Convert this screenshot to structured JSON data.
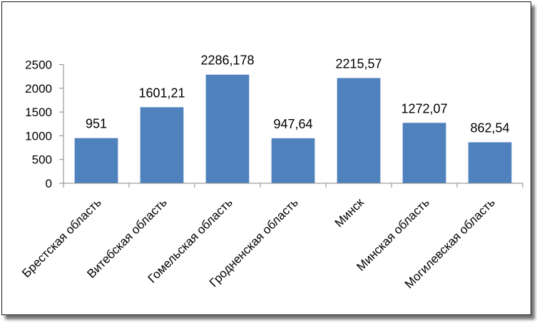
{
  "chart_data": {
    "type": "bar",
    "categories": [
      "Брестская область",
      "Витебская область",
      "Гомельская область",
      "Гродненская область",
      "Минск",
      "Минская область",
      "Могилевская область"
    ],
    "values": [
      951,
      1601.21,
      2286.178,
      947.64,
      2215.57,
      1272.07,
      862.54
    ],
    "data_labels": [
      "951",
      "1601,21",
      "2286,178",
      "947,64",
      "2215,57",
      "1272,07",
      "862,54"
    ],
    "y_ticks": [
      "0",
      "500",
      "1000",
      "1500",
      "2000",
      "2500"
    ],
    "ylim": [
      0,
      2500
    ],
    "title": "",
    "xlabel": "",
    "ylabel": "",
    "grid": false,
    "legend": "none",
    "bar_color": "#4f81bd"
  }
}
